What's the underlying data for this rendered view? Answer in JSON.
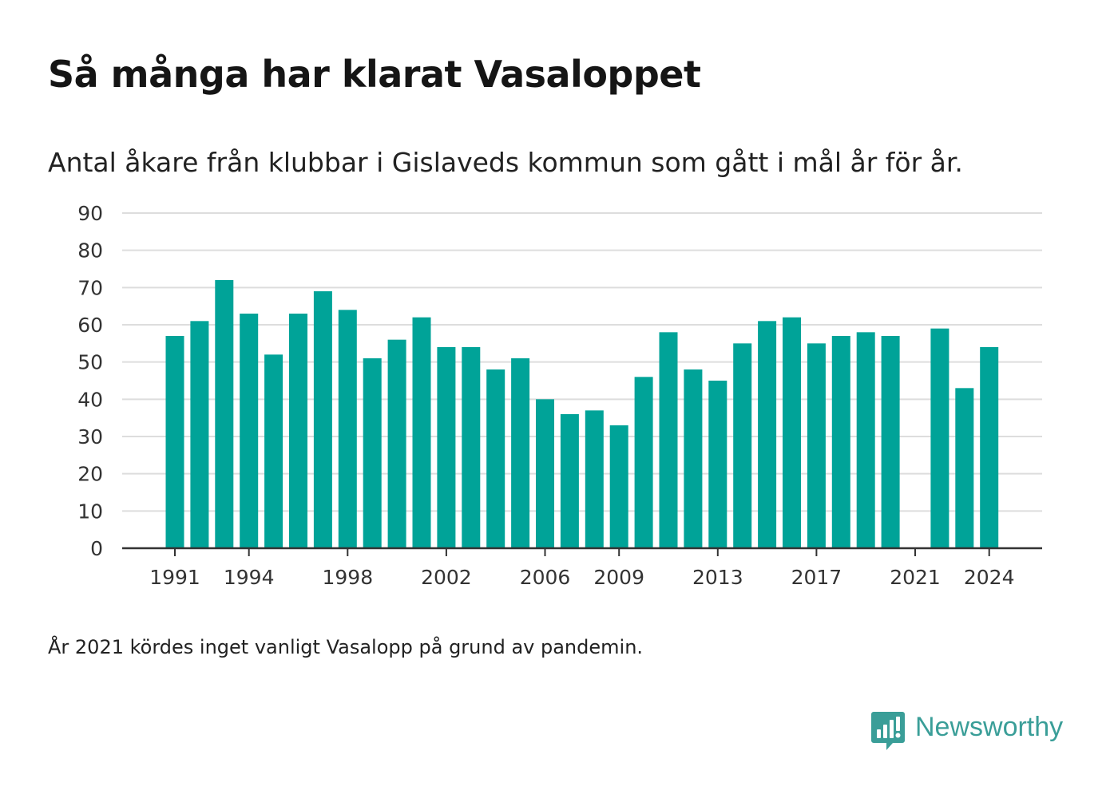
{
  "header": {
    "title": "Så många har klarat Vasaloppet",
    "subtitle": "Antal åkare från klubbar i Gislaveds kommun som gått i mål år för år."
  },
  "footer": {
    "note": "År 2021 kördes inget vanligt Vasalopp på grund av pandemin.",
    "brand": "Newsworthy"
  },
  "colors": {
    "bar": "#00a398",
    "grid": "#dddddd",
    "axis": "#333333",
    "brand": "#3a9e98"
  },
  "chart_data": {
    "type": "bar",
    "categories": [
      1991,
      1992,
      1993,
      1994,
      1995,
      1996,
      1997,
      1998,
      1999,
      2000,
      2001,
      2002,
      2003,
      2004,
      2005,
      2006,
      2007,
      2008,
      2009,
      2010,
      2011,
      2012,
      2013,
      2014,
      2015,
      2016,
      2017,
      2018,
      2019,
      2020,
      2021,
      2022,
      2023,
      2024
    ],
    "values": [
      57,
      61,
      72,
      63,
      52,
      63,
      69,
      64,
      51,
      56,
      62,
      54,
      54,
      48,
      51,
      40,
      36,
      37,
      33,
      46,
      58,
      48,
      45,
      55,
      61,
      62,
      55,
      57,
      58,
      57,
      null,
      59,
      43,
      54
    ],
    "x_tick_labels": [
      "1991",
      "1994",
      "1998",
      "2002",
      "2006",
      "2009",
      "2013",
      "2017",
      "2021",
      "2024"
    ],
    "y_ticks": [
      0,
      10,
      20,
      30,
      40,
      50,
      60,
      70,
      80,
      90
    ],
    "ylim": [
      0,
      90
    ],
    "grid": true,
    "xlabel": "",
    "ylabel": ""
  }
}
